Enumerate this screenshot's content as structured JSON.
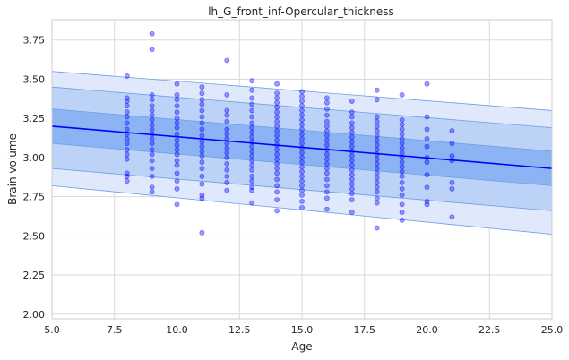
{
  "chart_data": {
    "type": "scatter",
    "title": "lh_G_front_inf-Opercular_thickness",
    "xlabel": "Age",
    "ylabel": "Brain volume",
    "xlim": [
      5.0,
      25.0
    ],
    "ylim": [
      1.97,
      3.88
    ],
    "x_ticks": [
      "5.0",
      "7.5",
      "10.0",
      "12.5",
      "15.0",
      "17.5",
      "20.0",
      "22.5",
      "25.0"
    ],
    "y_ticks": [
      "2.00",
      "2.25",
      "2.50",
      "2.75",
      "3.00",
      "3.25",
      "3.50",
      "3.75"
    ],
    "grid": true,
    "colors": {
      "points": "#0000ff",
      "mean_line": "#0000ff",
      "band_inner": "#8cb4f5",
      "band_middle": "#bcd3f7",
      "band_outer": "#dfe9fb",
      "band_edge": "#6f9de6",
      "grid": "#d9d9d9",
      "axes_frame": "#cccccc"
    },
    "trend": {
      "x": [
        5.0,
        25.0
      ],
      "mean": [
        3.2,
        2.93
      ],
      "band_inner": {
        "upper": [
          3.31,
          3.04
        ],
        "lower": [
          3.09,
          2.82
        ]
      },
      "band_middle": {
        "upper": [
          3.45,
          3.19
        ],
        "lower": [
          2.93,
          2.66
        ]
      },
      "band_outer": {
        "upper": [
          3.55,
          3.3
        ],
        "lower": [
          2.82,
          2.51
        ]
      }
    },
    "series": [
      {
        "values": [
          {
            "x": 8,
            "y": 3.52
          },
          {
            "x": 8,
            "y": 3.38
          },
          {
            "x": 8,
            "y": 3.36
          },
          {
            "x": 8,
            "y": 3.33
          },
          {
            "x": 8,
            "y": 3.29
          },
          {
            "x": 8,
            "y": 3.26
          },
          {
            "x": 8,
            "y": 3.22
          },
          {
            "x": 8,
            "y": 3.18
          },
          {
            "x": 8,
            "y": 3.15
          },
          {
            "x": 8,
            "y": 3.12
          },
          {
            "x": 8,
            "y": 3.09
          },
          {
            "x": 8,
            "y": 3.05
          },
          {
            "x": 8,
            "y": 3.02
          },
          {
            "x": 8,
            "y": 2.99
          },
          {
            "x": 8,
            "y": 2.9
          },
          {
            "x": 8,
            "y": 2.88
          },
          {
            "x": 8,
            "y": 2.85
          },
          {
            "x": 9,
            "y": 3.79
          },
          {
            "x": 9,
            "y": 3.69
          },
          {
            "x": 9,
            "y": 3.4
          },
          {
            "x": 9,
            "y": 3.37
          },
          {
            "x": 9,
            "y": 3.33
          },
          {
            "x": 9,
            "y": 3.3
          },
          {
            "x": 9,
            "y": 3.27
          },
          {
            "x": 9,
            "y": 3.24
          },
          {
            "x": 9,
            "y": 3.21
          },
          {
            "x": 9,
            "y": 3.18
          },
          {
            "x": 9,
            "y": 3.15
          },
          {
            "x": 9,
            "y": 3.12
          },
          {
            "x": 9,
            "y": 3.09
          },
          {
            "x": 9,
            "y": 3.05
          },
          {
            "x": 9,
            "y": 3.02
          },
          {
            "x": 9,
            "y": 2.98
          },
          {
            "x": 9,
            "y": 2.93
          },
          {
            "x": 9,
            "y": 2.88
          },
          {
            "x": 9,
            "y": 2.81
          },
          {
            "x": 9,
            "y": 2.78
          },
          {
            "x": 10,
            "y": 3.47
          },
          {
            "x": 10,
            "y": 3.4
          },
          {
            "x": 10,
            "y": 3.37
          },
          {
            "x": 10,
            "y": 3.33
          },
          {
            "x": 10,
            "y": 3.29
          },
          {
            "x": 10,
            "y": 3.25
          },
          {
            "x": 10,
            "y": 3.22
          },
          {
            "x": 10,
            "y": 3.19
          },
          {
            "x": 10,
            "y": 3.15
          },
          {
            "x": 10,
            "y": 3.11
          },
          {
            "x": 10,
            "y": 3.08
          },
          {
            "x": 10,
            "y": 3.05
          },
          {
            "x": 10,
            "y": 3.02
          },
          {
            "x": 10,
            "y": 2.98
          },
          {
            "x": 10,
            "y": 2.95
          },
          {
            "x": 10,
            "y": 2.9
          },
          {
            "x": 10,
            "y": 2.85
          },
          {
            "x": 10,
            "y": 2.8
          },
          {
            "x": 10,
            "y": 2.7
          },
          {
            "x": 11,
            "y": 3.45
          },
          {
            "x": 11,
            "y": 3.41
          },
          {
            "x": 11,
            "y": 3.37
          },
          {
            "x": 11,
            "y": 3.34
          },
          {
            "x": 11,
            "y": 3.3
          },
          {
            "x": 11,
            "y": 3.26
          },
          {
            "x": 11,
            "y": 3.22
          },
          {
            "x": 11,
            "y": 3.18
          },
          {
            "x": 11,
            "y": 3.14
          },
          {
            "x": 11,
            "y": 3.1
          },
          {
            "x": 11,
            "y": 3.07
          },
          {
            "x": 11,
            "y": 3.04
          },
          {
            "x": 11,
            "y": 3.01
          },
          {
            "x": 11,
            "y": 2.97
          },
          {
            "x": 11,
            "y": 2.93
          },
          {
            "x": 11,
            "y": 2.88
          },
          {
            "x": 11,
            "y": 2.83
          },
          {
            "x": 11,
            "y": 2.76
          },
          {
            "x": 11,
            "y": 2.74
          },
          {
            "x": 11,
            "y": 2.52
          },
          {
            "x": 12,
            "y": 3.62
          },
          {
            "x": 12,
            "y": 3.4
          },
          {
            "x": 12,
            "y": 3.3
          },
          {
            "x": 12,
            "y": 3.27
          },
          {
            "x": 12,
            "y": 3.23
          },
          {
            "x": 12,
            "y": 3.18
          },
          {
            "x": 12,
            "y": 3.15
          },
          {
            "x": 12,
            "y": 3.12
          },
          {
            "x": 12,
            "y": 3.09
          },
          {
            "x": 12,
            "y": 3.06
          },
          {
            "x": 12,
            "y": 3.03
          },
          {
            "x": 12,
            "y": 3.0
          },
          {
            "x": 12,
            "y": 2.96
          },
          {
            "x": 12,
            "y": 2.92
          },
          {
            "x": 12,
            "y": 2.88
          },
          {
            "x": 12,
            "y": 2.84
          },
          {
            "x": 12,
            "y": 2.79
          },
          {
            "x": 13,
            "y": 3.49
          },
          {
            "x": 13,
            "y": 3.43
          },
          {
            "x": 13,
            "y": 3.38
          },
          {
            "x": 13,
            "y": 3.34
          },
          {
            "x": 13,
            "y": 3.3
          },
          {
            "x": 13,
            "y": 3.26
          },
          {
            "x": 13,
            "y": 3.22
          },
          {
            "x": 13,
            "y": 3.19
          },
          {
            "x": 13,
            "y": 3.16
          },
          {
            "x": 13,
            "y": 3.13
          },
          {
            "x": 13,
            "y": 3.1
          },
          {
            "x": 13,
            "y": 3.07
          },
          {
            "x": 13,
            "y": 3.04
          },
          {
            "x": 13,
            "y": 3.01
          },
          {
            "x": 13,
            "y": 2.98
          },
          {
            "x": 13,
            "y": 2.95
          },
          {
            "x": 13,
            "y": 2.92
          },
          {
            "x": 13,
            "y": 2.88
          },
          {
            "x": 13,
            "y": 2.85
          },
          {
            "x": 13,
            "y": 2.81
          },
          {
            "x": 13,
            "y": 2.79
          },
          {
            "x": 13,
            "y": 2.71
          },
          {
            "x": 14,
            "y": 3.47
          },
          {
            "x": 14,
            "y": 3.41
          },
          {
            "x": 14,
            "y": 3.38
          },
          {
            "x": 14,
            "y": 3.35
          },
          {
            "x": 14,
            "y": 3.32
          },
          {
            "x": 14,
            "y": 3.29
          },
          {
            "x": 14,
            "y": 3.26
          },
          {
            "x": 14,
            "y": 3.23
          },
          {
            "x": 14,
            "y": 3.2
          },
          {
            "x": 14,
            "y": 3.17
          },
          {
            "x": 14,
            "y": 3.14
          },
          {
            "x": 14,
            "y": 3.11
          },
          {
            "x": 14,
            "y": 3.08
          },
          {
            "x": 14,
            "y": 3.05
          },
          {
            "x": 14,
            "y": 3.02
          },
          {
            "x": 14,
            "y": 2.99
          },
          {
            "x": 14,
            "y": 2.96
          },
          {
            "x": 14,
            "y": 2.93
          },
          {
            "x": 14,
            "y": 2.9
          },
          {
            "x": 14,
            "y": 2.86
          },
          {
            "x": 14,
            "y": 2.82
          },
          {
            "x": 14,
            "y": 2.78
          },
          {
            "x": 14,
            "y": 2.73
          },
          {
            "x": 14,
            "y": 2.66
          },
          {
            "x": 15,
            "y": 3.42
          },
          {
            "x": 15,
            "y": 3.39
          },
          {
            "x": 15,
            "y": 3.36
          },
          {
            "x": 15,
            "y": 3.33
          },
          {
            "x": 15,
            "y": 3.3
          },
          {
            "x": 15,
            "y": 3.27
          },
          {
            "x": 15,
            "y": 3.24
          },
          {
            "x": 15,
            "y": 3.21
          },
          {
            "x": 15,
            "y": 3.18
          },
          {
            "x": 15,
            "y": 3.15
          },
          {
            "x": 15,
            "y": 3.12
          },
          {
            "x": 15,
            "y": 3.09
          },
          {
            "x": 15,
            "y": 3.06
          },
          {
            "x": 15,
            "y": 3.03
          },
          {
            "x": 15,
            "y": 3.0
          },
          {
            "x": 15,
            "y": 2.97
          },
          {
            "x": 15,
            "y": 2.94
          },
          {
            "x": 15,
            "y": 2.91
          },
          {
            "x": 15,
            "y": 2.88
          },
          {
            "x": 15,
            "y": 2.85
          },
          {
            "x": 15,
            "y": 2.82
          },
          {
            "x": 15,
            "y": 2.79
          },
          {
            "x": 15,
            "y": 2.76
          },
          {
            "x": 15,
            "y": 2.72
          },
          {
            "x": 15,
            "y": 2.68
          },
          {
            "x": 16,
            "y": 3.38
          },
          {
            "x": 16,
            "y": 3.35
          },
          {
            "x": 16,
            "y": 3.31
          },
          {
            "x": 16,
            "y": 3.27
          },
          {
            "x": 16,
            "y": 3.23
          },
          {
            "x": 16,
            "y": 3.2
          },
          {
            "x": 16,
            "y": 3.17
          },
          {
            "x": 16,
            "y": 3.14
          },
          {
            "x": 16,
            "y": 3.11
          },
          {
            "x": 16,
            "y": 3.08
          },
          {
            "x": 16,
            "y": 3.05
          },
          {
            "x": 16,
            "y": 3.02
          },
          {
            "x": 16,
            "y": 2.99
          },
          {
            "x": 16,
            "y": 2.96
          },
          {
            "x": 16,
            "y": 2.93
          },
          {
            "x": 16,
            "y": 2.9
          },
          {
            "x": 16,
            "y": 2.86
          },
          {
            "x": 16,
            "y": 2.82
          },
          {
            "x": 16,
            "y": 2.78
          },
          {
            "x": 16,
            "y": 2.74
          },
          {
            "x": 16,
            "y": 2.67
          },
          {
            "x": 17,
            "y": 3.36
          },
          {
            "x": 17,
            "y": 3.29
          },
          {
            "x": 17,
            "y": 3.26
          },
          {
            "x": 17,
            "y": 3.22
          },
          {
            "x": 17,
            "y": 3.19
          },
          {
            "x": 17,
            "y": 3.16
          },
          {
            "x": 17,
            "y": 3.13
          },
          {
            "x": 17,
            "y": 3.1
          },
          {
            "x": 17,
            "y": 3.07
          },
          {
            "x": 17,
            "y": 3.04
          },
          {
            "x": 17,
            "y": 3.01
          },
          {
            "x": 17,
            "y": 2.98
          },
          {
            "x": 17,
            "y": 2.95
          },
          {
            "x": 17,
            "y": 2.92
          },
          {
            "x": 17,
            "y": 2.89
          },
          {
            "x": 17,
            "y": 2.86
          },
          {
            "x": 17,
            "y": 2.83
          },
          {
            "x": 17,
            "y": 2.8
          },
          {
            "x": 17,
            "y": 2.77
          },
          {
            "x": 17,
            "y": 2.73
          },
          {
            "x": 17,
            "y": 2.65
          },
          {
            "x": 18,
            "y": 3.43
          },
          {
            "x": 18,
            "y": 3.37
          },
          {
            "x": 18,
            "y": 3.26
          },
          {
            "x": 18,
            "y": 3.23
          },
          {
            "x": 18,
            "y": 3.2
          },
          {
            "x": 18,
            "y": 3.17
          },
          {
            "x": 18,
            "y": 3.14
          },
          {
            "x": 18,
            "y": 3.11
          },
          {
            "x": 18,
            "y": 3.08
          },
          {
            "x": 18,
            "y": 3.05
          },
          {
            "x": 18,
            "y": 3.02
          },
          {
            "x": 18,
            "y": 2.99
          },
          {
            "x": 18,
            "y": 2.96
          },
          {
            "x": 18,
            "y": 2.93
          },
          {
            "x": 18,
            "y": 2.9
          },
          {
            "x": 18,
            "y": 2.87
          },
          {
            "x": 18,
            "y": 2.84
          },
          {
            "x": 18,
            "y": 2.81
          },
          {
            "x": 18,
            "y": 2.78
          },
          {
            "x": 18,
            "y": 2.74
          },
          {
            "x": 18,
            "y": 2.71
          },
          {
            "x": 18,
            "y": 2.55
          },
          {
            "x": 19,
            "y": 3.4
          },
          {
            "x": 19,
            "y": 3.24
          },
          {
            "x": 19,
            "y": 3.21
          },
          {
            "x": 19,
            "y": 3.18
          },
          {
            "x": 19,
            "y": 3.15
          },
          {
            "x": 19,
            "y": 3.12
          },
          {
            "x": 19,
            "y": 3.09
          },
          {
            "x": 19,
            "y": 3.06
          },
          {
            "x": 19,
            "y": 3.03
          },
          {
            "x": 19,
            "y": 3.0
          },
          {
            "x": 19,
            "y": 2.97
          },
          {
            "x": 19,
            "y": 2.94
          },
          {
            "x": 19,
            "y": 2.91
          },
          {
            "x": 19,
            "y": 2.88
          },
          {
            "x": 19,
            "y": 2.84
          },
          {
            "x": 19,
            "y": 2.8
          },
          {
            "x": 19,
            "y": 2.76
          },
          {
            "x": 19,
            "y": 2.7
          },
          {
            "x": 19,
            "y": 2.65
          },
          {
            "x": 19,
            "y": 2.6
          },
          {
            "x": 20,
            "y": 3.47
          },
          {
            "x": 20,
            "y": 3.26
          },
          {
            "x": 20,
            "y": 3.18
          },
          {
            "x": 20,
            "y": 3.12
          },
          {
            "x": 20,
            "y": 3.07
          },
          {
            "x": 20,
            "y": 3.0
          },
          {
            "x": 20,
            "y": 2.97
          },
          {
            "x": 20,
            "y": 2.89
          },
          {
            "x": 20,
            "y": 2.81
          },
          {
            "x": 20,
            "y": 2.72
          },
          {
            "x": 20,
            "y": 2.7
          },
          {
            "x": 21,
            "y": 3.17
          },
          {
            "x": 21,
            "y": 3.09
          },
          {
            "x": 21,
            "y": 3.01
          },
          {
            "x": 21,
            "y": 2.98
          },
          {
            "x": 21,
            "y": 2.84
          },
          {
            "x": 21,
            "y": 2.8
          },
          {
            "x": 21,
            "y": 2.62
          }
        ]
      }
    ]
  }
}
